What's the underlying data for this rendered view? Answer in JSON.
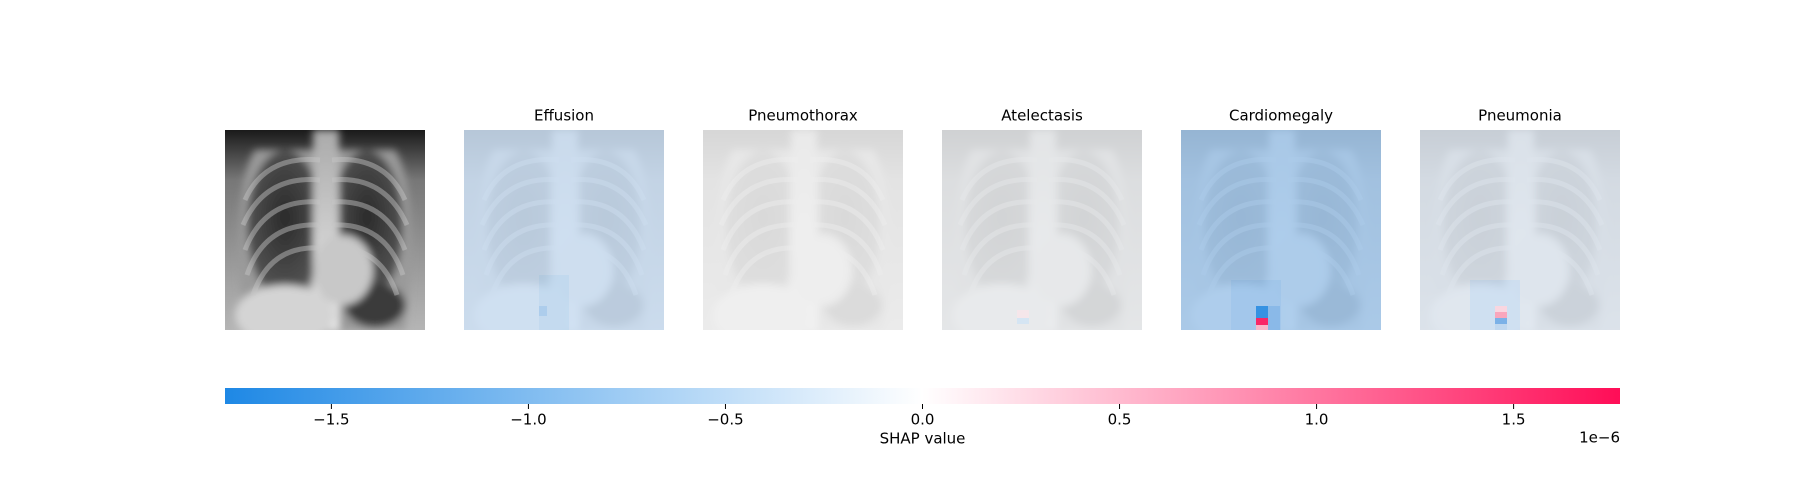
{
  "chart_data": {
    "type": "shap_image",
    "panels": [
      "Effusion",
      "Pneumothorax",
      "Atelectasis",
      "Cardiomegaly",
      "Pneumonia"
    ],
    "colorbar": {
      "xlim": [
        -1.77,
        1.77
      ],
      "xticks": [
        {
          "value": -1.5,
          "label": "−1.5"
        },
        {
          "value": -1.0,
          "label": "−1.0"
        },
        {
          "value": -0.5,
          "label": "−0.5"
        },
        {
          "value": 0,
          "label": "0.0"
        },
        {
          "value": 0.5,
          "label": "0.5"
        },
        {
          "value": 1.0,
          "label": "1.0"
        },
        {
          "value": 1.5,
          "label": "1.5"
        }
      ],
      "xlabel": "SHAP value",
      "offset_label": "1e−6",
      "colors": [
        "#1e88e5",
        "#ffffff",
        "#ff0d57"
      ]
    }
  }
}
